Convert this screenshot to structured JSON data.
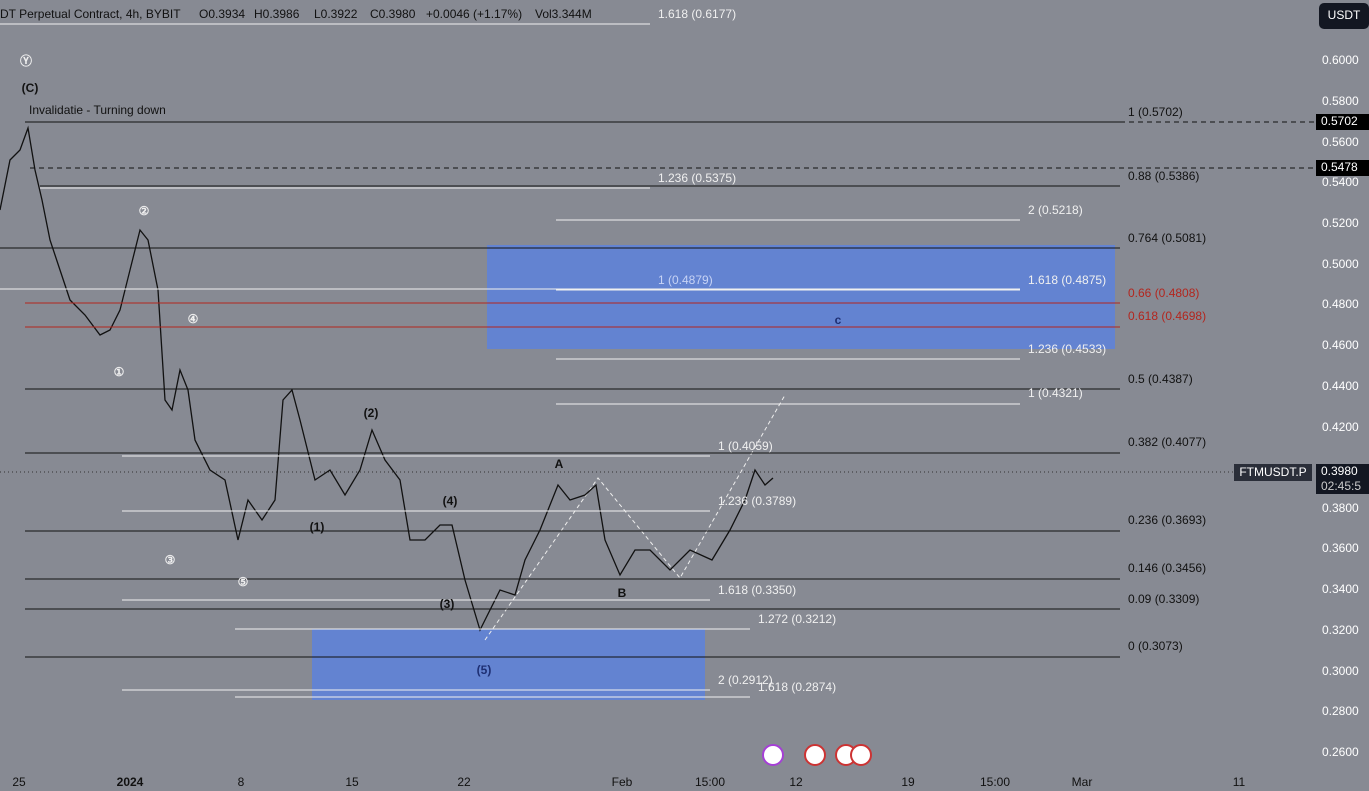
{
  "header": {
    "symbol": "DT Perpetual Contract, 4h, BYBIT",
    "open": "O0.3934",
    "high": "H0.3986",
    "low": "L0.3922",
    "close": "C0.3980",
    "change": "+0.0046 (+1.17%)",
    "volume": "Vol3.344M"
  },
  "currency_button": "USDT",
  "annotation": "Invalidatie - Turning down",
  "price_axis": [
    "0.6000",
    "0.5800",
    "0.5600",
    "0.5400",
    "0.5200",
    "0.5000",
    "0.4800",
    "0.4600",
    "0.4400",
    "0.4200",
    "0.3800",
    "0.3600",
    "0.3400",
    "0.3200",
    "0.3000",
    "0.2800",
    "0.2600"
  ],
  "price_tags": [
    "0.5702",
    "0.5478"
  ],
  "ticker_tag": {
    "symbol": "FTMUSDT.P",
    "price": "0.3980",
    "countdown": "02:45:5"
  },
  "fib_labels": [
    "1 (0.5702)",
    "0.88 (0.5386)",
    "0.764 (0.5081)",
    "0.66 (0.4808)",
    "0.618 (0.4698)",
    "0.5 (0.4387)",
    "0.382 (0.4077)",
    "0.236 (0.3693)",
    "0.146 (0.3456)",
    "0.09 (0.3309)",
    "0 (0.3073)",
    "1.618 (0.6177)",
    "1.236 (0.5375)",
    "2 (0.5218)",
    "1 (0.4879)",
    "1.618 (0.4875)",
    "1.236 (0.4533)",
    "1 (0.4321)",
    "1 (0.4059)",
    "1.236 (0.3789)",
    "1.618 (0.3350)",
    "1.272 (0.3212)",
    "2 (0.2912)",
    "1.618 (0.2874)"
  ],
  "wave_labels": [
    "Ⓨ",
    "(C)",
    "②",
    "①",
    "④",
    "③",
    "⑤",
    "(2)",
    "(1)",
    "(4)",
    "(3)",
    "(5)",
    "A",
    "B",
    "c"
  ],
  "time_axis": [
    "25",
    "2024",
    "8",
    "15",
    "22",
    "Feb",
    "15:00",
    "12",
    "19",
    "15:00",
    "Mar",
    "11"
  ]
}
